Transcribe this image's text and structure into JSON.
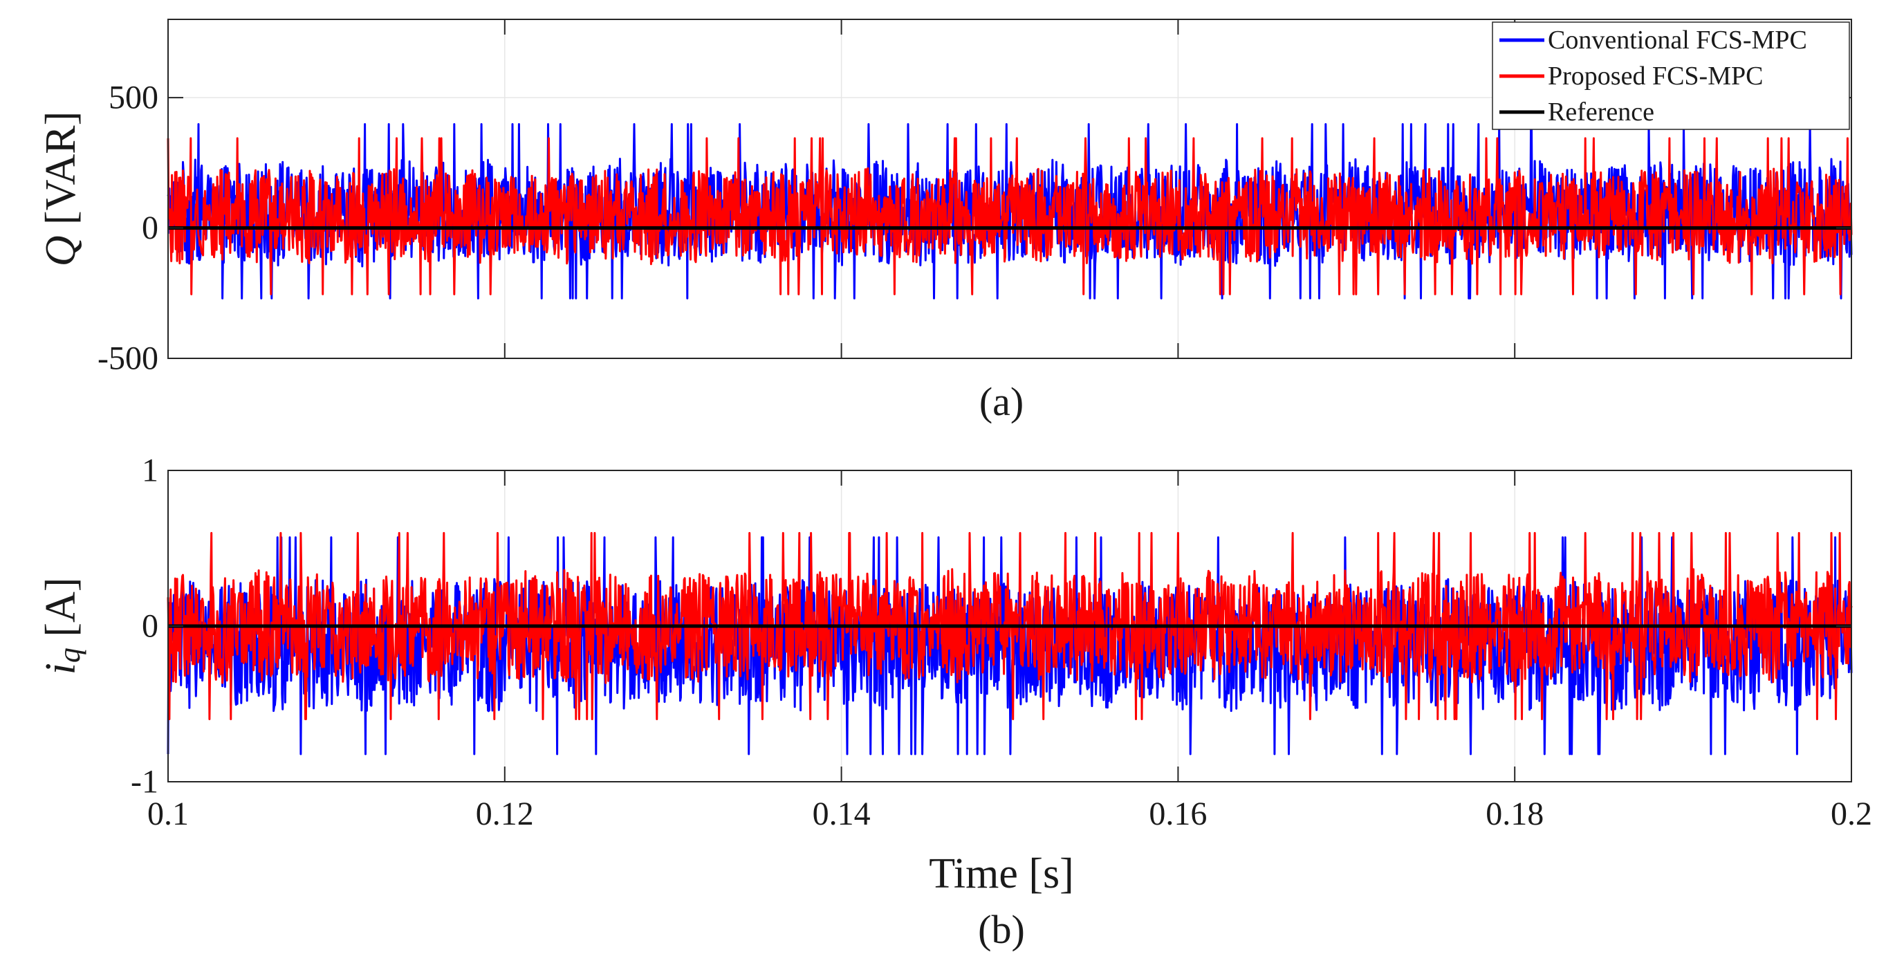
{
  "chart_data": [
    {
      "type": "line",
      "caption": "(a)",
      "ylabel_symbol": "Q",
      "ylabel_unit": " [VAR]",
      "xlim": [
        0.1,
        0.2
      ],
      "ylim": [
        -500,
        800
      ],
      "yticks": [
        -500,
        0,
        500
      ],
      "ytick_labels": [
        "-500",
        "0",
        "500"
      ],
      "xticks": [
        0.1,
        0.12,
        0.14,
        0.16,
        0.18,
        0.2
      ],
      "xtick_labels": [],
      "grid": true,
      "legend": {
        "placement": "top-right",
        "entries": [
          {
            "label": "Conventional FCS-MPC",
            "color": "#0000ff"
          },
          {
            "label": "Proposed FCS-MPC",
            "color": "#ff0000"
          },
          {
            "label": "Reference",
            "color": "#000000"
          }
        ]
      },
      "series": [
        {
          "name": "Conventional FCS-MPC",
          "color": "#0000ff",
          "signal": {
            "mean": 60,
            "amplitude": 130,
            "peak_min": -270,
            "peak_max": 475
          }
        },
        {
          "name": "Proposed FCS-MPC",
          "color": "#ff0000",
          "signal": {
            "mean": 45,
            "amplitude": 115,
            "peak_min": -320,
            "peak_max": 460
          }
        },
        {
          "name": "Reference",
          "color": "#000000",
          "x": [
            0.1,
            0.2
          ],
          "y": [
            0,
            0
          ]
        }
      ]
    },
    {
      "type": "line",
      "caption": "(b)",
      "ylabel_symbol": "i",
      "ylabel_sub": "q",
      "ylabel_unit": " [A]",
      "xlabel": "Time [s]",
      "xlim": [
        0.1,
        0.2
      ],
      "ylim": [
        -1,
        1
      ],
      "yticks": [
        -1,
        0,
        1
      ],
      "ytick_labels": [
        "-1",
        "0",
        "1"
      ],
      "xticks": [
        0.1,
        0.12,
        0.14,
        0.16,
        0.18,
        0.2
      ],
      "xtick_labels": [
        "0.1",
        "0.12",
        "0.14",
        "0.16",
        "0.18",
        "0.2"
      ],
      "grid": true,
      "series": [
        {
          "name": "Conventional FCS-MPC",
          "color": "#0000ff",
          "signal": {
            "mean": -0.12,
            "amplitude": 0.27,
            "peak_min": -0.96,
            "peak_max": 0.57
          }
        },
        {
          "name": "Proposed FCS-MPC",
          "color": "#ff0000",
          "signal": {
            "mean": 0.0,
            "amplitude": 0.23,
            "peak_min": -0.93,
            "peak_max": 0.68
          }
        },
        {
          "name": "Reference",
          "color": "#000000",
          "x": [
            0.1,
            0.2
          ],
          "y": [
            0,
            0
          ]
        }
      ]
    }
  ]
}
